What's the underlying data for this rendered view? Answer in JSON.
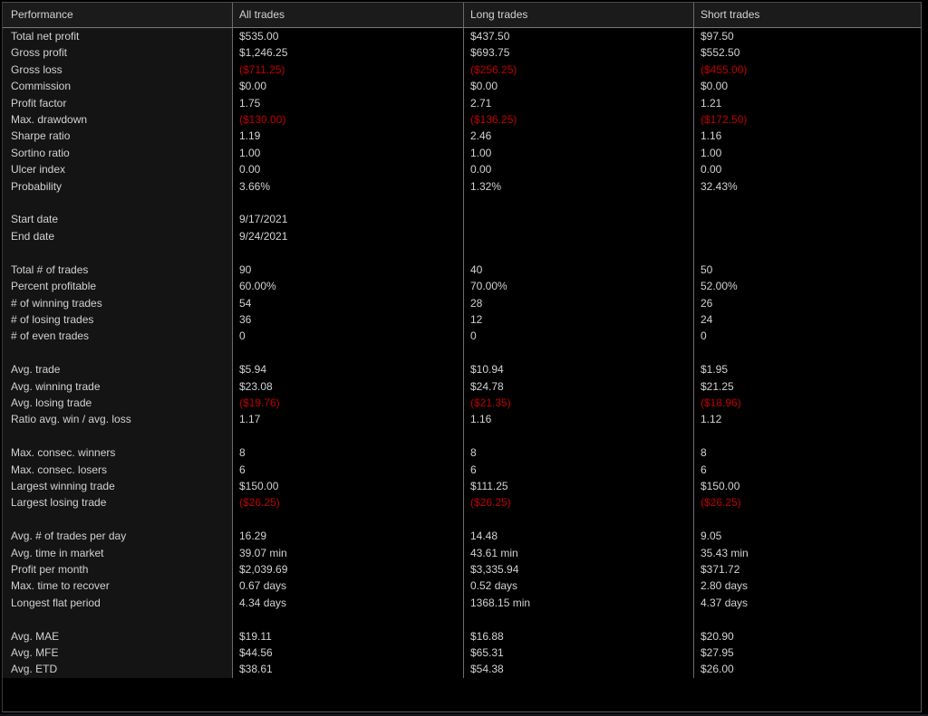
{
  "colors": {
    "negative_value": "#c00000",
    "positive_text": "#d2d2d2",
    "header_background": "#1b1b1b",
    "label_column_background": "#141414",
    "gridline": "#6a6a6a"
  },
  "table": {
    "columns": [
      "Performance",
      "All trades",
      "Long trades",
      "Short trades"
    ],
    "rows": [
      {
        "label": "Total net profit",
        "all": "$535.00",
        "long": "$437.50",
        "short": "$97.50"
      },
      {
        "label": "Gross profit",
        "all": "$1,246.25",
        "long": "$693.75",
        "short": "$552.50"
      },
      {
        "label": "Gross loss",
        "all": "($711.25)",
        "long": "($256.25)",
        "short": "($455.00)"
      },
      {
        "label": "Commission",
        "all": "$0.00",
        "long": "$0.00",
        "short": "$0.00"
      },
      {
        "label": "Profit factor",
        "all": "1.75",
        "long": "2.71",
        "short": "1.21"
      },
      {
        "label": "Max. drawdown",
        "all": "($130.00)",
        "long": "($136.25)",
        "short": "($172.50)"
      },
      {
        "label": "Sharpe ratio",
        "all": "1.19",
        "long": "2.46",
        "short": "1.16"
      },
      {
        "label": "Sortino ratio",
        "all": "1.00",
        "long": "1.00",
        "short": "1.00"
      },
      {
        "label": "Ulcer index",
        "all": "0.00",
        "long": "0.00",
        "short": "0.00"
      },
      {
        "label": "Probability",
        "all": "3.66%",
        "long": "1.32%",
        "short": "32.43%"
      },
      {
        "label": "",
        "all": "",
        "long": "",
        "short": ""
      },
      {
        "label": "Start date",
        "all": "9/17/2021",
        "long": "",
        "short": ""
      },
      {
        "label": "End date",
        "all": "9/24/2021",
        "long": "",
        "short": ""
      },
      {
        "label": "",
        "all": "",
        "long": "",
        "short": ""
      },
      {
        "label": "Total # of trades",
        "all": "90",
        "long": "40",
        "short": "50"
      },
      {
        "label": "Percent profitable",
        "all": "60.00%",
        "long": "70.00%",
        "short": "52.00%"
      },
      {
        "label": "# of winning trades",
        "all": "54",
        "long": "28",
        "short": "26"
      },
      {
        "label": "# of losing trades",
        "all": "36",
        "long": "12",
        "short": "24"
      },
      {
        "label": "# of even trades",
        "all": "0",
        "long": "0",
        "short": "0"
      },
      {
        "label": "",
        "all": "",
        "long": "",
        "short": ""
      },
      {
        "label": "Avg. trade",
        "all": "$5.94",
        "long": "$10.94",
        "short": "$1.95"
      },
      {
        "label": "Avg. winning trade",
        "all": "$23.08",
        "long": "$24.78",
        "short": "$21.25"
      },
      {
        "label": "Avg. losing trade",
        "all": "($19.76)",
        "long": "($21.35)",
        "short": "($18.96)"
      },
      {
        "label": "Ratio avg. win / avg. loss",
        "all": "1.17",
        "long": "1.16",
        "short": "1.12"
      },
      {
        "label": "",
        "all": "",
        "long": "",
        "short": ""
      },
      {
        "label": "Max. consec. winners",
        "all": "8",
        "long": "8",
        "short": "8"
      },
      {
        "label": "Max. consec. losers",
        "all": "6",
        "long": "6",
        "short": "6"
      },
      {
        "label": "Largest winning trade",
        "all": "$150.00",
        "long": "$111.25",
        "short": "$150.00"
      },
      {
        "label": "Largest losing trade",
        "all": "($26.25)",
        "long": "($26.25)",
        "short": "($26.25)"
      },
      {
        "label": "",
        "all": "",
        "long": "",
        "short": ""
      },
      {
        "label": "Avg. # of trades per day",
        "all": "16.29",
        "long": "14.48",
        "short": "9.05"
      },
      {
        "label": "Avg. time in market",
        "all": "39.07 min",
        "long": "43.61 min",
        "short": "35.43 min"
      },
      {
        "label": "Profit per month",
        "all": "$2,039.69",
        "long": "$3,335.94",
        "short": "$371.72"
      },
      {
        "label": "Max. time to recover",
        "all": "0.67 days",
        "long": "0.52 days",
        "short": "2.80 days"
      },
      {
        "label": "Longest flat period",
        "all": "4.34 days",
        "long": "1368.15 min",
        "short": "4.37 days"
      },
      {
        "label": "",
        "all": "",
        "long": "",
        "short": ""
      },
      {
        "label": "Avg. MAE",
        "all": "$19.11",
        "long": "$16.88",
        "short": "$20.90"
      },
      {
        "label": "Avg. MFE",
        "all": "$44.56",
        "long": "$65.31",
        "short": "$27.95"
      },
      {
        "label": "Avg. ETD",
        "all": "$38.61",
        "long": "$54.38",
        "short": "$26.00"
      }
    ]
  }
}
